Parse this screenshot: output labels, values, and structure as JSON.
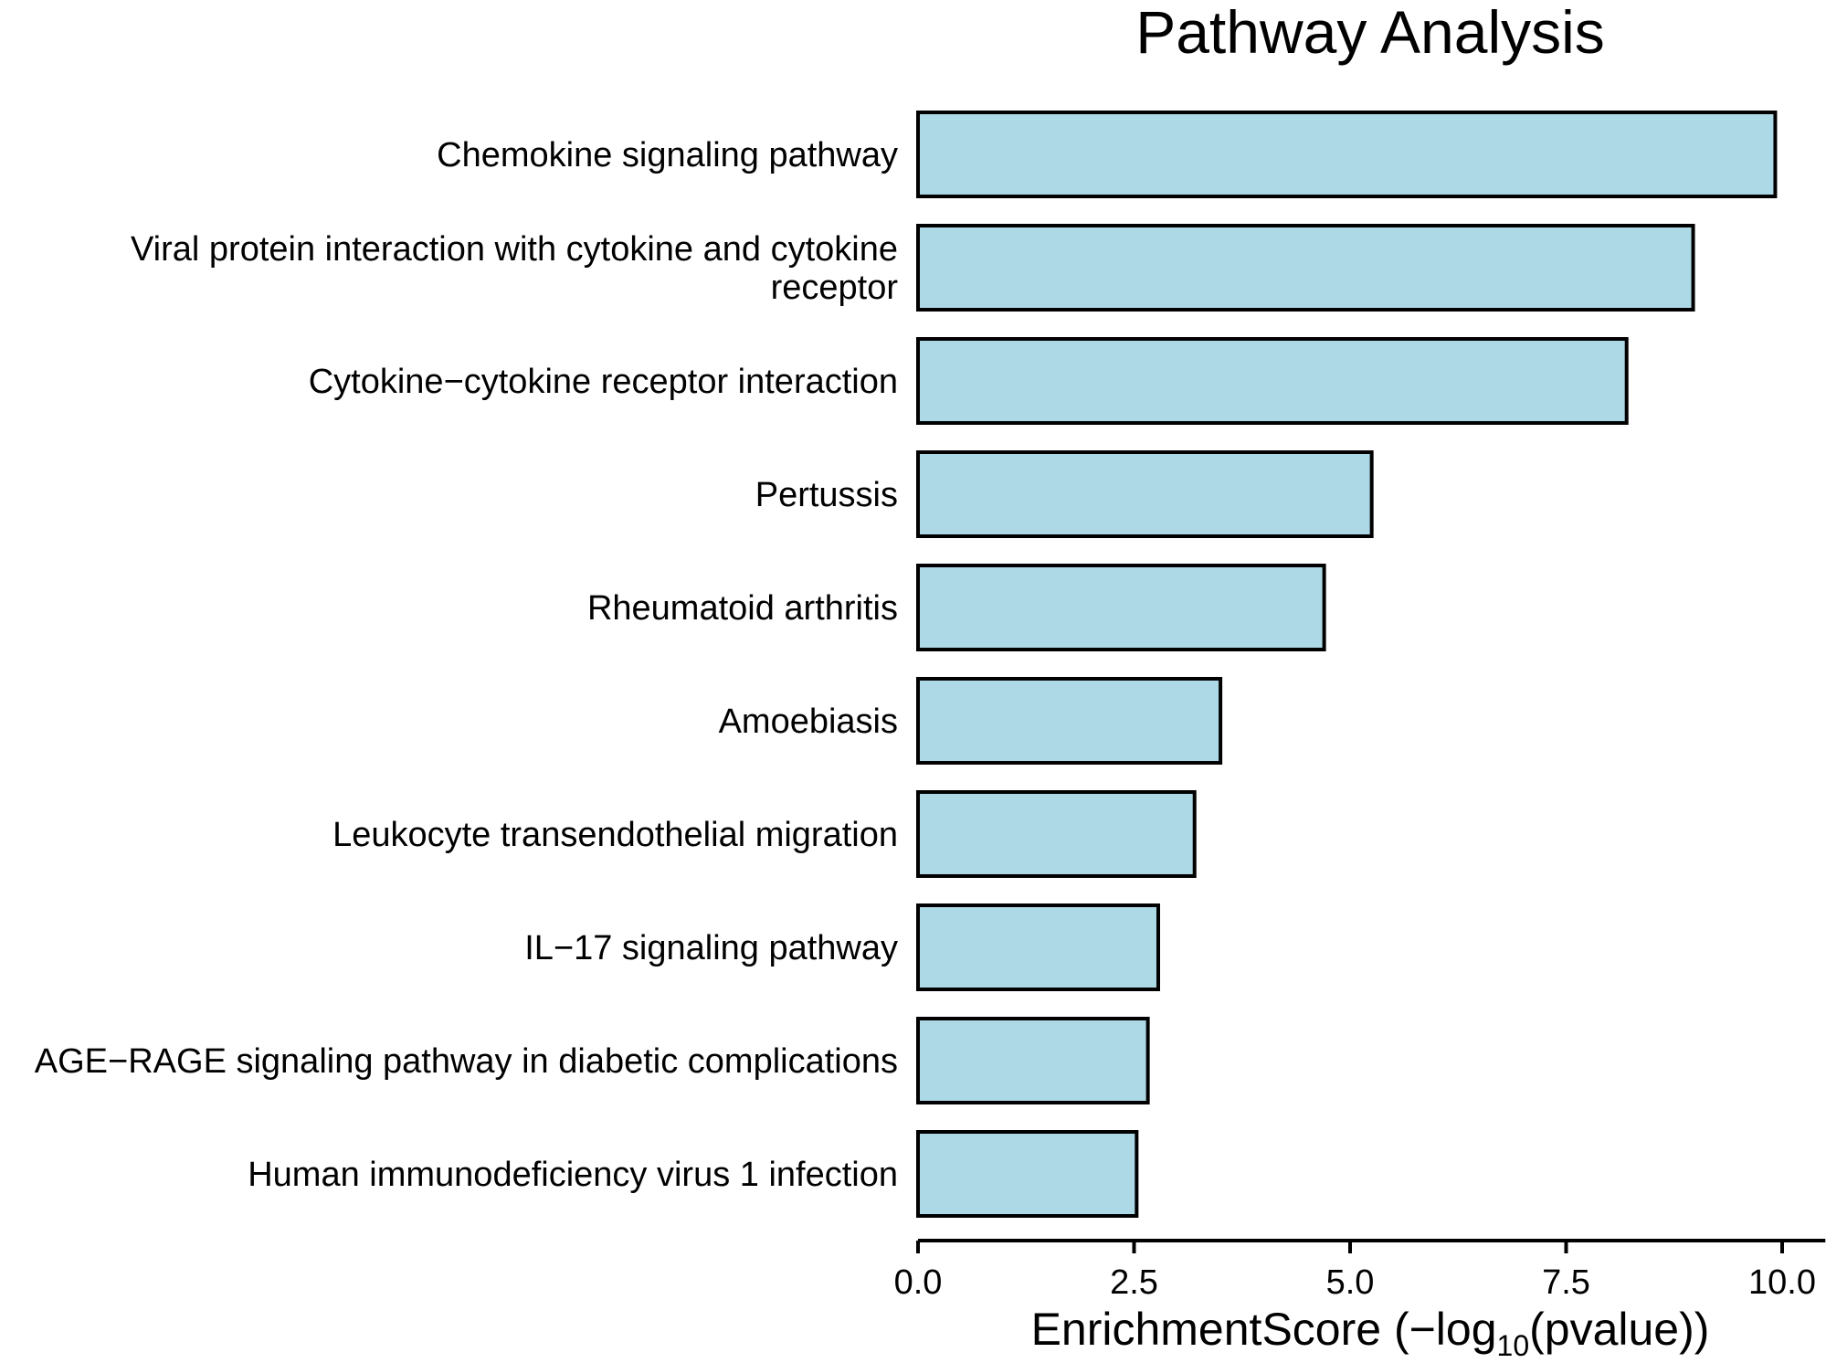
{
  "chart_data": {
    "type": "bar",
    "orientation": "horizontal",
    "title": "Pathway Analysis",
    "xlabel": {
      "prefix": "EnrichmentScore (−log",
      "subscript": "10",
      "suffix": "(pvalue))"
    },
    "ylabel": "",
    "xlim": [
      0,
      10.5
    ],
    "xticks": [
      "0.0",
      "2.5",
      "5.0",
      "7.5",
      "10.0"
    ],
    "xtick_values": [
      0,
      2.5,
      5,
      7.5,
      10
    ],
    "bar_fill": "#add8e6",
    "bar_stroke": "#000000",
    "grid": false,
    "legend": "none",
    "categories": [
      [
        "Chemokine signaling pathway"
      ],
      [
        "Viral protein interaction with cytokine and cytokine",
        "receptor"
      ],
      [
        "Cytokine−cytokine receptor interaction"
      ],
      [
        "Pertussis"
      ],
      [
        "Rheumatoid arthritis"
      ],
      [
        "Amoebiasis"
      ],
      [
        "Leukocyte transendothelial migration"
      ],
      [
        "IL−17 signaling pathway"
      ],
      [
        "AGE−RAGE signaling pathway in diabetic complications"
      ],
      [
        "Human immunodeficiency virus 1 infection"
      ]
    ],
    "values": [
      9.92,
      8.97,
      8.2,
      5.25,
      4.7,
      3.5,
      3.2,
      2.78,
      2.66,
      2.53
    ]
  }
}
